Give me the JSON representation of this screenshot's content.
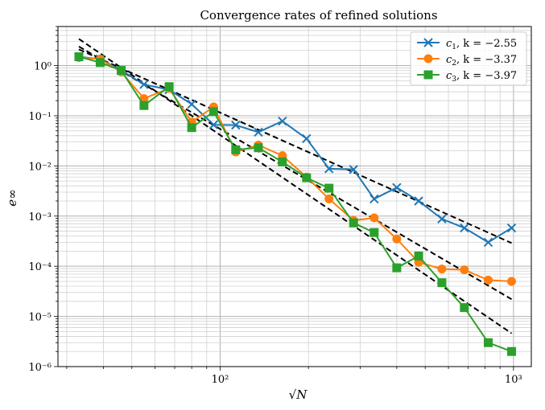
{
  "chart_data": {
    "type": "line",
    "title": "Convergence rates of refined solutions",
    "xlabel": "√N",
    "ylabel": "e∞",
    "xscale": "log",
    "yscale": "log",
    "xlim": [
      28,
      1150
    ],
    "ylim": [
      1e-06,
      6
    ],
    "x_ticks": [
      {
        "value": 100,
        "label": "10²"
      },
      {
        "value": 1000,
        "label": "10³"
      }
    ],
    "y_ticks": [
      {
        "value": 1e-06,
        "label": "10⁻⁶"
      },
      {
        "value": 1e-05,
        "label": "10⁻⁵"
      },
      {
        "value": 0.0001,
        "label": "10⁻⁴"
      },
      {
        "value": 0.001,
        "label": "10⁻³"
      },
      {
        "value": 0.01,
        "label": "10⁻²"
      },
      {
        "value": 0.1,
        "label": "10⁻¹"
      },
      {
        "value": 1,
        "label": "10⁰"
      }
    ],
    "grid": "major and minor",
    "legend_position": "top-right",
    "x": [
      33,
      39,
      46,
      55,
      67,
      80,
      95,
      113,
      135,
      163,
      197,
      235,
      285,
      335,
      400,
      475,
      570,
      680,
      820,
      985
    ],
    "series": [
      {
        "name": "c₁, k = −2.55",
        "color": "#1f77b4",
        "marker": "x",
        "values": [
          1.5,
          1.35,
          0.8,
          0.42,
          0.33,
          0.17,
          0.066,
          0.065,
          0.047,
          0.078,
          0.035,
          0.0088,
          0.0085,
          0.0022,
          0.0037,
          0.002,
          0.00088,
          0.00058,
          0.0003,
          0.00058
        ]
      },
      {
        "name": "c₂, k = −3.37",
        "color": "#ff7f0e",
        "marker": "o",
        "values": [
          1.45,
          1.35,
          0.75,
          0.22,
          0.35,
          0.075,
          0.15,
          0.019,
          0.026,
          0.016,
          0.006,
          0.0022,
          0.00082,
          0.00092,
          0.00035,
          0.00012,
          8.8e-05,
          8.5e-05,
          5.3e-05,
          5e-05
        ]
      },
      {
        "name": "c₃, k = −3.97",
        "color": "#2ca02c",
        "marker": "s",
        "values": [
          1.5,
          1.15,
          0.8,
          0.16,
          0.38,
          0.058,
          0.12,
          0.021,
          0.023,
          0.012,
          0.0058,
          0.0036,
          0.00073,
          0.00047,
          9.3e-05,
          0.00016,
          4.7e-05,
          1.5e-05,
          3e-06,
          2e-06
        ]
      }
    ],
    "fit_lines": [
      {
        "k": -2.55,
        "color": "#000000",
        "x": [
          33,
          985
        ],
        "y": [
          2.1,
          0.00029
        ]
      },
      {
        "k": -3.37,
        "color": "#000000",
        "x": [
          33,
          985
        ],
        "y": [
          2.4,
          2.2e-05
        ]
      },
      {
        "k": -3.97,
        "color": "#000000",
        "x": [
          33,
          985
        ],
        "y": [
          3.4,
          4.6e-06
        ]
      }
    ],
    "legend": [
      {
        "var": "c",
        "sub": "1",
        "text": ", k = −2.55",
        "color": "#1f77b4",
        "marker": "x"
      },
      {
        "var": "c",
        "sub": "2",
        "text": ", k = −3.37",
        "color": "#ff7f0e",
        "marker": "o"
      },
      {
        "var": "c",
        "sub": "3",
        "text": ", k = −3.97",
        "color": "#2ca02c",
        "marker": "s"
      }
    ]
  }
}
